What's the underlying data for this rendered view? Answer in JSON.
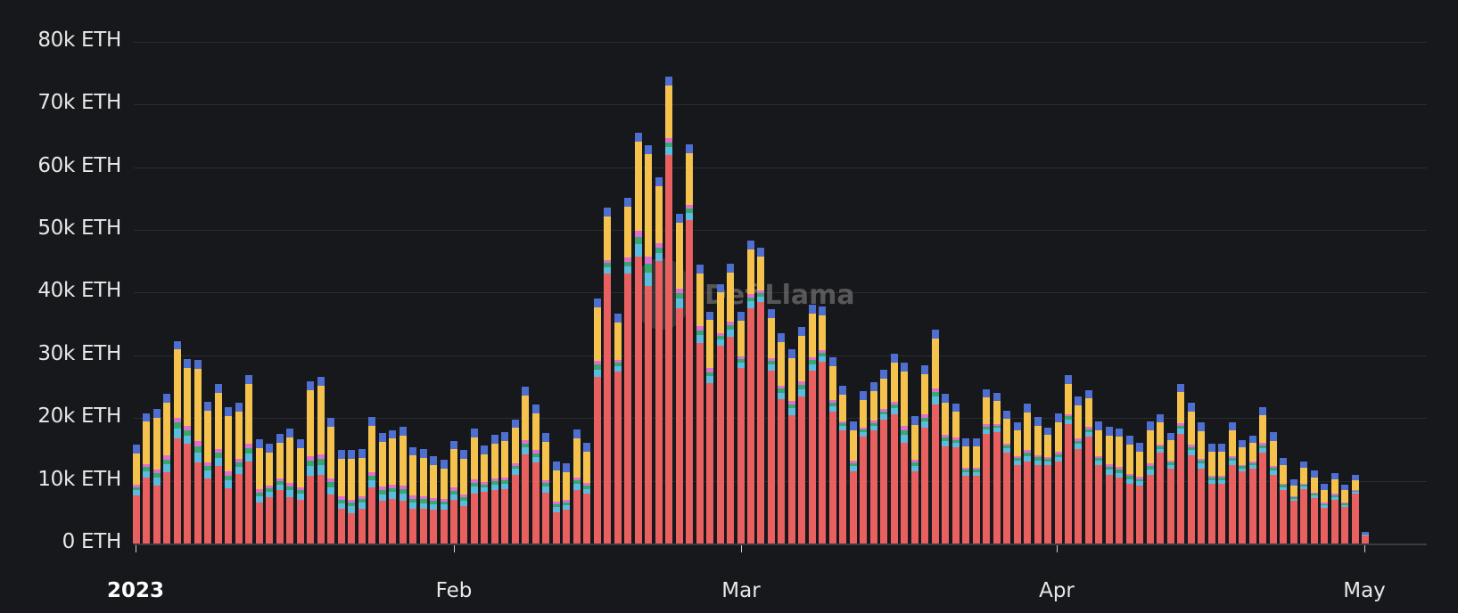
{
  "chart_data": {
    "type": "bar",
    "stacked": true,
    "title": "",
    "xlabel": "",
    "ylabel": "",
    "ylim": [
      0,
      80000
    ],
    "unit": "ETH",
    "y_ticks": [
      "0 ETH",
      "10k ETH",
      "20k ETH",
      "30k ETH",
      "40k ETH",
      "50k ETH",
      "60k ETH",
      "70k ETH",
      "80k ETH"
    ],
    "x_ticks": [
      "2023",
      "Feb",
      "Mar",
      "Apr",
      "May"
    ],
    "x_range": [
      "2023-01-01",
      "2023-05-01"
    ],
    "grid": true,
    "legend": "none",
    "watermark": "DefiLlama",
    "series_colors": [
      "#e8605f",
      "#5bbce0",
      "#3aa76d",
      "#e06fd0",
      "#f5c24e",
      "#4f6fd0",
      "#8bc34a"
    ],
    "totals_k": [
      15.8,
      20.8,
      21.5,
      23.8,
      32.3,
      29.4,
      29.3,
      22.6,
      25.4,
      21.7,
      22.4,
      26.8,
      16.6,
      15.9,
      17.5,
      18.3,
      16.6,
      25.9,
      26.6,
      20.0,
      14.9,
      14.9,
      15.1,
      20.2,
      17.6,
      18.1,
      18.6,
      15.4,
      15.1,
      13.9,
      13.3,
      16.4,
      14.9,
      18.3,
      15.6,
      17.3,
      17.7,
      19.8,
      25.0,
      22.2,
      17.6,
      13.1,
      12.8,
      18.2,
      16.0,
      39.0,
      53.6,
      36.6,
      55.1,
      65.5,
      63.5,
      58.4,
      74.4,
      52.5,
      63.6,
      44.5,
      37.0,
      41.4,
      44.6,
      36.9,
      48.3,
      47.2,
      37.4,
      33.5,
      31.0,
      34.5,
      38.1,
      37.8,
      29.7,
      25.1,
      19.5,
      24.3,
      25.7,
      27.7,
      30.2,
      28.8,
      20.3,
      28.4,
      34.1,
      23.9,
      22.3,
      16.7,
      16.7,
      24.6,
      24.0,
      21.2,
      19.3,
      22.3,
      20.2,
      18.5,
      20.7,
      26.8,
      23.4,
      24.5,
      19.4,
      18.6,
      18.4,
      17.2,
      16.0,
      19.5,
      20.6,
      17.6,
      25.5,
      22.5,
      19.3,
      15.9,
      15.9,
      19.3,
      16.5,
      17.2,
      21.8,
      17.7,
      13.6,
      10.2,
      13.1,
      11.6,
      9.5,
      11.3,
      9.4,
      11.0,
      1.9
    ],
    "red_share_k": [
      7.7,
      10.5,
      9.3,
      11.4,
      16.8,
      15.9,
      12.9,
      10.4,
      12.4,
      8.8,
      11.1,
      13.0,
      6.5,
      7.4,
      8.5,
      7.4,
      7.0,
      10.8,
      11.0,
      7.8,
      5.5,
      4.9,
      5.6,
      9.0,
      6.8,
      7.1,
      6.8,
      5.6,
      5.5,
      5.4,
      5.4,
      6.9,
      6.0,
      8.0,
      8.2,
      8.5,
      8.6,
      11.0,
      14.2,
      12.9,
      8.1,
      5.0,
      5.4,
      8.5,
      7.9,
      26.5,
      43.0,
      27.4,
      43.0,
      45.7,
      41.0,
      45.0,
      62.0,
      37.5,
      51.5,
      32.0,
      25.5,
      31.5,
      33.0,
      28.0,
      37.5,
      38.5,
      27.5,
      23.0,
      20.5,
      23.5,
      27.5,
      29.0,
      21.0,
      18.0,
      11.5,
      17.0,
      18.0,
      19.8,
      20.6,
      16.0,
      11.5,
      18.5,
      22.2,
      15.5,
      15.4,
      10.8,
      10.8,
      17.5,
      17.8,
      14.5,
      12.5,
      13.0,
      12.5,
      12.5,
      13.0,
      19.0,
      15.0,
      17.0,
      12.5,
      11.0,
      10.5,
      9.5,
      9.2,
      11.0,
      14.5,
      12.0,
      17.5,
      14.0,
      12.0,
      9.5,
      9.5,
      12.5,
      11.5,
      12.0,
      14.5,
      11.0,
      8.5,
      6.8,
      8.6,
      7.2,
      5.7,
      7.0,
      5.8,
      7.9,
      1.5
    ]
  }
}
